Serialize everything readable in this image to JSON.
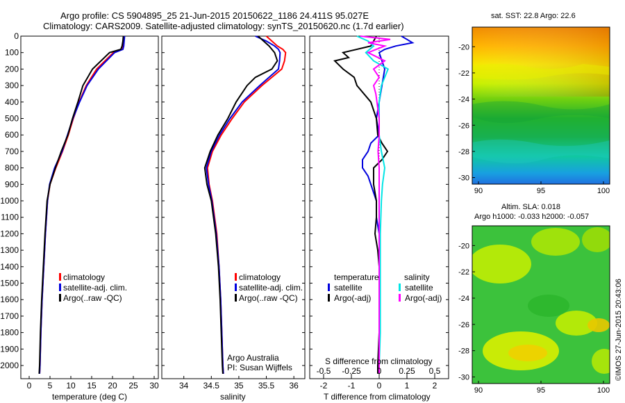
{
  "header": {
    "line1": "Argo profile: CS 5904895_25 21-Jun-2015 20150622_1186 24.411S 95.027E",
    "line2": "Climatology: CARS2009. Satellite-adjusted climatology: synTS_20150620.nc (1.7d earlier)"
  },
  "colors": {
    "climatology": "#ff0000",
    "satellite": "#0000dd",
    "argo": "#000000",
    "sat_salinity": "#00e5e5",
    "argo_salinity": "#ff00ff"
  },
  "chart_data": [
    {
      "type": "line",
      "name": "temperature-profile",
      "xlabel": "temperature (deg C)",
      "xlim": [
        -2,
        31
      ],
      "xticks": [
        "0",
        "5",
        "10",
        "15",
        "20",
        "25",
        "30"
      ],
      "ylim": [
        0,
        2080
      ],
      "yticks": [
        "0",
        "100",
        "200",
        "300",
        "400",
        "500",
        "600",
        "700",
        "800",
        "900",
        "1000",
        "1100",
        "1200",
        "1300",
        "1400",
        "1500",
        "1600",
        "1700",
        "1800",
        "1900",
        "2000"
      ],
      "legend": [
        "climatology",
        "satellite-adj. clim.",
        "Argo(..raw -QC)"
      ],
      "series": [
        {
          "name": "climatology",
          "depth": [
            0,
            30,
            60,
            80,
            100,
            200,
            300,
            400,
            500,
            600,
            700,
            800,
            900,
            1000,
            1200,
            1400,
            1600,
            1800,
            2000,
            2050
          ],
          "values": [
            22.8,
            22.7,
            22.6,
            22.4,
            20.2,
            16.2,
            13.7,
            12.0,
            10.6,
            9.4,
            8.0,
            6.4,
            5.0,
            4.4,
            3.9,
            3.5,
            3.1,
            2.8,
            2.6,
            2.5
          ]
        },
        {
          "name": "satellite-adj. clim.",
          "depth": [
            0,
            30,
            60,
            80,
            100,
            200,
            300,
            400,
            500,
            600,
            700,
            800,
            900,
            1000,
            1200,
            1400,
            1600,
            1800,
            2000,
            2050
          ],
          "values": [
            22.9,
            22.8,
            22.7,
            22.5,
            20.5,
            16.6,
            13.9,
            12.1,
            10.5,
            9.2,
            7.9,
            6.1,
            4.9,
            4.4,
            3.9,
            3.5,
            3.1,
            2.8,
            2.6,
            2.5
          ]
        },
        {
          "name": "Argo(..raw -QC)",
          "depth": [
            0,
            30,
            60,
            80,
            100,
            200,
            300,
            400,
            500,
            600,
            700,
            800,
            900,
            1000,
            1200,
            1400,
            1600,
            1800,
            2000,
            2050
          ],
          "values": [
            22.6,
            22.5,
            22.3,
            22.0,
            19.3,
            15.2,
            12.9,
            11.7,
            10.4,
            9.3,
            7.7,
            6.3,
            5.0,
            4.3,
            3.8,
            3.4,
            3.0,
            2.7,
            2.5,
            2.4
          ]
        }
      ]
    },
    {
      "type": "line",
      "name": "salinity-profile",
      "xlabel": "salinity",
      "xlim": [
        33.6,
        36.2
      ],
      "xticks": [
        "34",
        "34.5",
        "35",
        "35.5",
        "36"
      ],
      "ylim": [
        0,
        2080
      ],
      "legend": [
        "climatology",
        "satellite-adj. clim.",
        "Argo(..raw -QC)"
      ],
      "annotation": [
        "Argo Australia",
        "PI: Susan Wijffels"
      ],
      "series": [
        {
          "name": "climatology",
          "depth": [
            0,
            30,
            60,
            80,
            100,
            150,
            200,
            300,
            400,
            500,
            600,
            700,
            800,
            900,
            1000,
            1200,
            1400,
            1600,
            1800,
            2000,
            2050
          ],
          "values": [
            35.5,
            35.6,
            35.7,
            35.8,
            35.85,
            35.83,
            35.78,
            35.42,
            35.1,
            34.88,
            34.68,
            34.52,
            34.43,
            34.46,
            34.52,
            34.6,
            34.64,
            34.67,
            34.69,
            34.71,
            34.72
          ]
        },
        {
          "name": "satellite-adj. clim.",
          "depth": [
            0,
            30,
            60,
            80,
            100,
            150,
            200,
            300,
            400,
            500,
            600,
            700,
            800,
            900,
            1000,
            1200,
            1400,
            1600,
            1800,
            2000,
            2050
          ],
          "values": [
            35.3,
            35.5,
            35.65,
            35.72,
            35.75,
            35.74,
            35.72,
            35.38,
            35.06,
            34.84,
            34.65,
            34.5,
            34.41,
            34.45,
            34.51,
            34.59,
            34.64,
            34.67,
            34.69,
            34.71,
            34.72
          ]
        },
        {
          "name": "Argo(..raw -QC)",
          "depth": [
            0,
            30,
            60,
            80,
            100,
            150,
            200,
            250,
            300,
            400,
            500,
            600,
            700,
            800,
            900,
            1000,
            1200,
            1400,
            1600,
            1800,
            2000,
            2050
          ],
          "values": [
            35.35,
            35.45,
            35.55,
            35.6,
            35.65,
            35.7,
            35.6,
            35.3,
            35.15,
            34.95,
            34.8,
            34.62,
            34.48,
            34.38,
            34.42,
            34.5,
            34.58,
            34.63,
            34.66,
            34.68,
            34.7,
            34.71
          ]
        }
      ]
    },
    {
      "type": "line",
      "name": "difference-profile",
      "xlabel": "T difference from climatology",
      "xlabel_top": "S difference from climatology",
      "xlim": [
        -2.5,
        2.5
      ],
      "xticks": [
        "-2",
        "-1",
        "0",
        "1",
        "2"
      ],
      "xticks_s": [
        "-0.5",
        "-0.25",
        "0",
        "0.25",
        "0.5"
      ],
      "ylim": [
        0,
        2080
      ],
      "legend_t_title": "temperature",
      "legend_s_title": "salinity",
      "legend_t": [
        "satellite",
        "Argo(-adj)"
      ],
      "legend_s": [
        "satellite",
        "Argo(-adj)"
      ],
      "series": [
        {
          "name": "T satellite",
          "depth": [
            0,
            20,
            40,
            60,
            80,
            100,
            150,
            200,
            300,
            400,
            500,
            600,
            650,
            700,
            750,
            800,
            850,
            900,
            950,
            1000,
            1100,
            1200,
            1400,
            1600,
            1800,
            2000,
            2050
          ],
          "values": [
            0.8,
            1.0,
            1.2,
            0.6,
            0.2,
            0.0,
            0.1,
            0.2,
            0.1,
            0.0,
            -0.1,
            0.0,
            -0.3,
            -0.4,
            -0.6,
            -0.6,
            -0.4,
            -0.3,
            -0.2,
            -0.1,
            -0.1,
            0.0,
            0.0,
            0.0,
            0.0,
            0.0,
            0.0
          ]
        },
        {
          "name": "T Argo(-adj)",
          "depth": [
            0,
            30,
            60,
            100,
            130,
            150,
            200,
            250,
            300,
            400,
            500,
            600,
            650,
            700,
            750,
            800,
            900,
            1000,
            1100,
            1200,
            1300,
            1400,
            1600,
            1800,
            2000,
            2050
          ],
          "values": [
            -0.1,
            -0.2,
            -0.3,
            -1.3,
            -1.1,
            -1.6,
            -1.3,
            -0.9,
            -0.8,
            -0.3,
            -0.1,
            -0.05,
            0.1,
            0.3,
            0.1,
            -0.2,
            -0.2,
            -0.1,
            -0.1,
            -0.15,
            -0.05,
            0.0,
            0.0,
            0.0,
            -0.05,
            -0.05
          ]
        },
        {
          "name": "S satellite",
          "depth": [
            0,
            30,
            60,
            100,
            150,
            200,
            250,
            300,
            350,
            400,
            500,
            600,
            700,
            800,
            900,
            1000,
            1200,
            1400,
            1600,
            1800,
            2000,
            2050
          ],
          "values": [
            -0.2,
            -0.1,
            -0.05,
            -0.12,
            -0.05,
            0.08,
            0.05,
            0.02,
            0.01,
            0.0,
            0.0,
            0.0,
            0.02,
            0.05,
            0.03,
            0.02,
            0.01,
            0.01,
            0.01,
            0.01,
            0.0,
            0.0
          ]
        },
        {
          "name": "S Argo(-adj)",
          "depth": [
            0,
            20,
            40,
            60,
            100,
            150,
            200,
            250,
            300,
            350,
            400,
            500,
            600,
            700,
            800,
            900,
            1000,
            1200,
            1400,
            1600,
            1800,
            2000,
            2050
          ],
          "values": [
            -0.17,
            0.1,
            -0.1,
            0.05,
            -0.1,
            0.05,
            -0.05,
            0.0,
            -0.05,
            -0.03,
            -0.02,
            0.0,
            0.0,
            -0.01,
            0.0,
            0.0,
            0.0,
            0.0,
            0.0,
            0.0,
            0.0,
            0.0,
            0.0
          ]
        }
      ]
    },
    {
      "type": "heatmap",
      "name": "sst-map",
      "title": "sat. SST: 22.8 Argo: 22.6",
      "xticks": [
        "90",
        "95",
        "100"
      ],
      "yticks": [
        "-20",
        "-22",
        "-24",
        "-26",
        "-28",
        "-30"
      ],
      "xlim": [
        89.5,
        100.5
      ],
      "ylim": [
        -30.5,
        -18.5
      ]
    },
    {
      "type": "heatmap",
      "name": "sla-map",
      "title_line1": "Altim. SLA: 0.018",
      "title_line2": "Argo h1000: -0.033 h2000: -0.057",
      "xticks": [
        "90",
        "95",
        "100"
      ],
      "yticks": [
        "-20",
        "-22",
        "-24",
        "-26",
        "-28",
        "-30"
      ],
      "xlim": [
        89.5,
        100.5
      ],
      "ylim": [
        -30.5,
        -18.5
      ]
    }
  ],
  "footer": {
    "stamp": "©IMOS 27-Jun-2015 20:43:06"
  }
}
